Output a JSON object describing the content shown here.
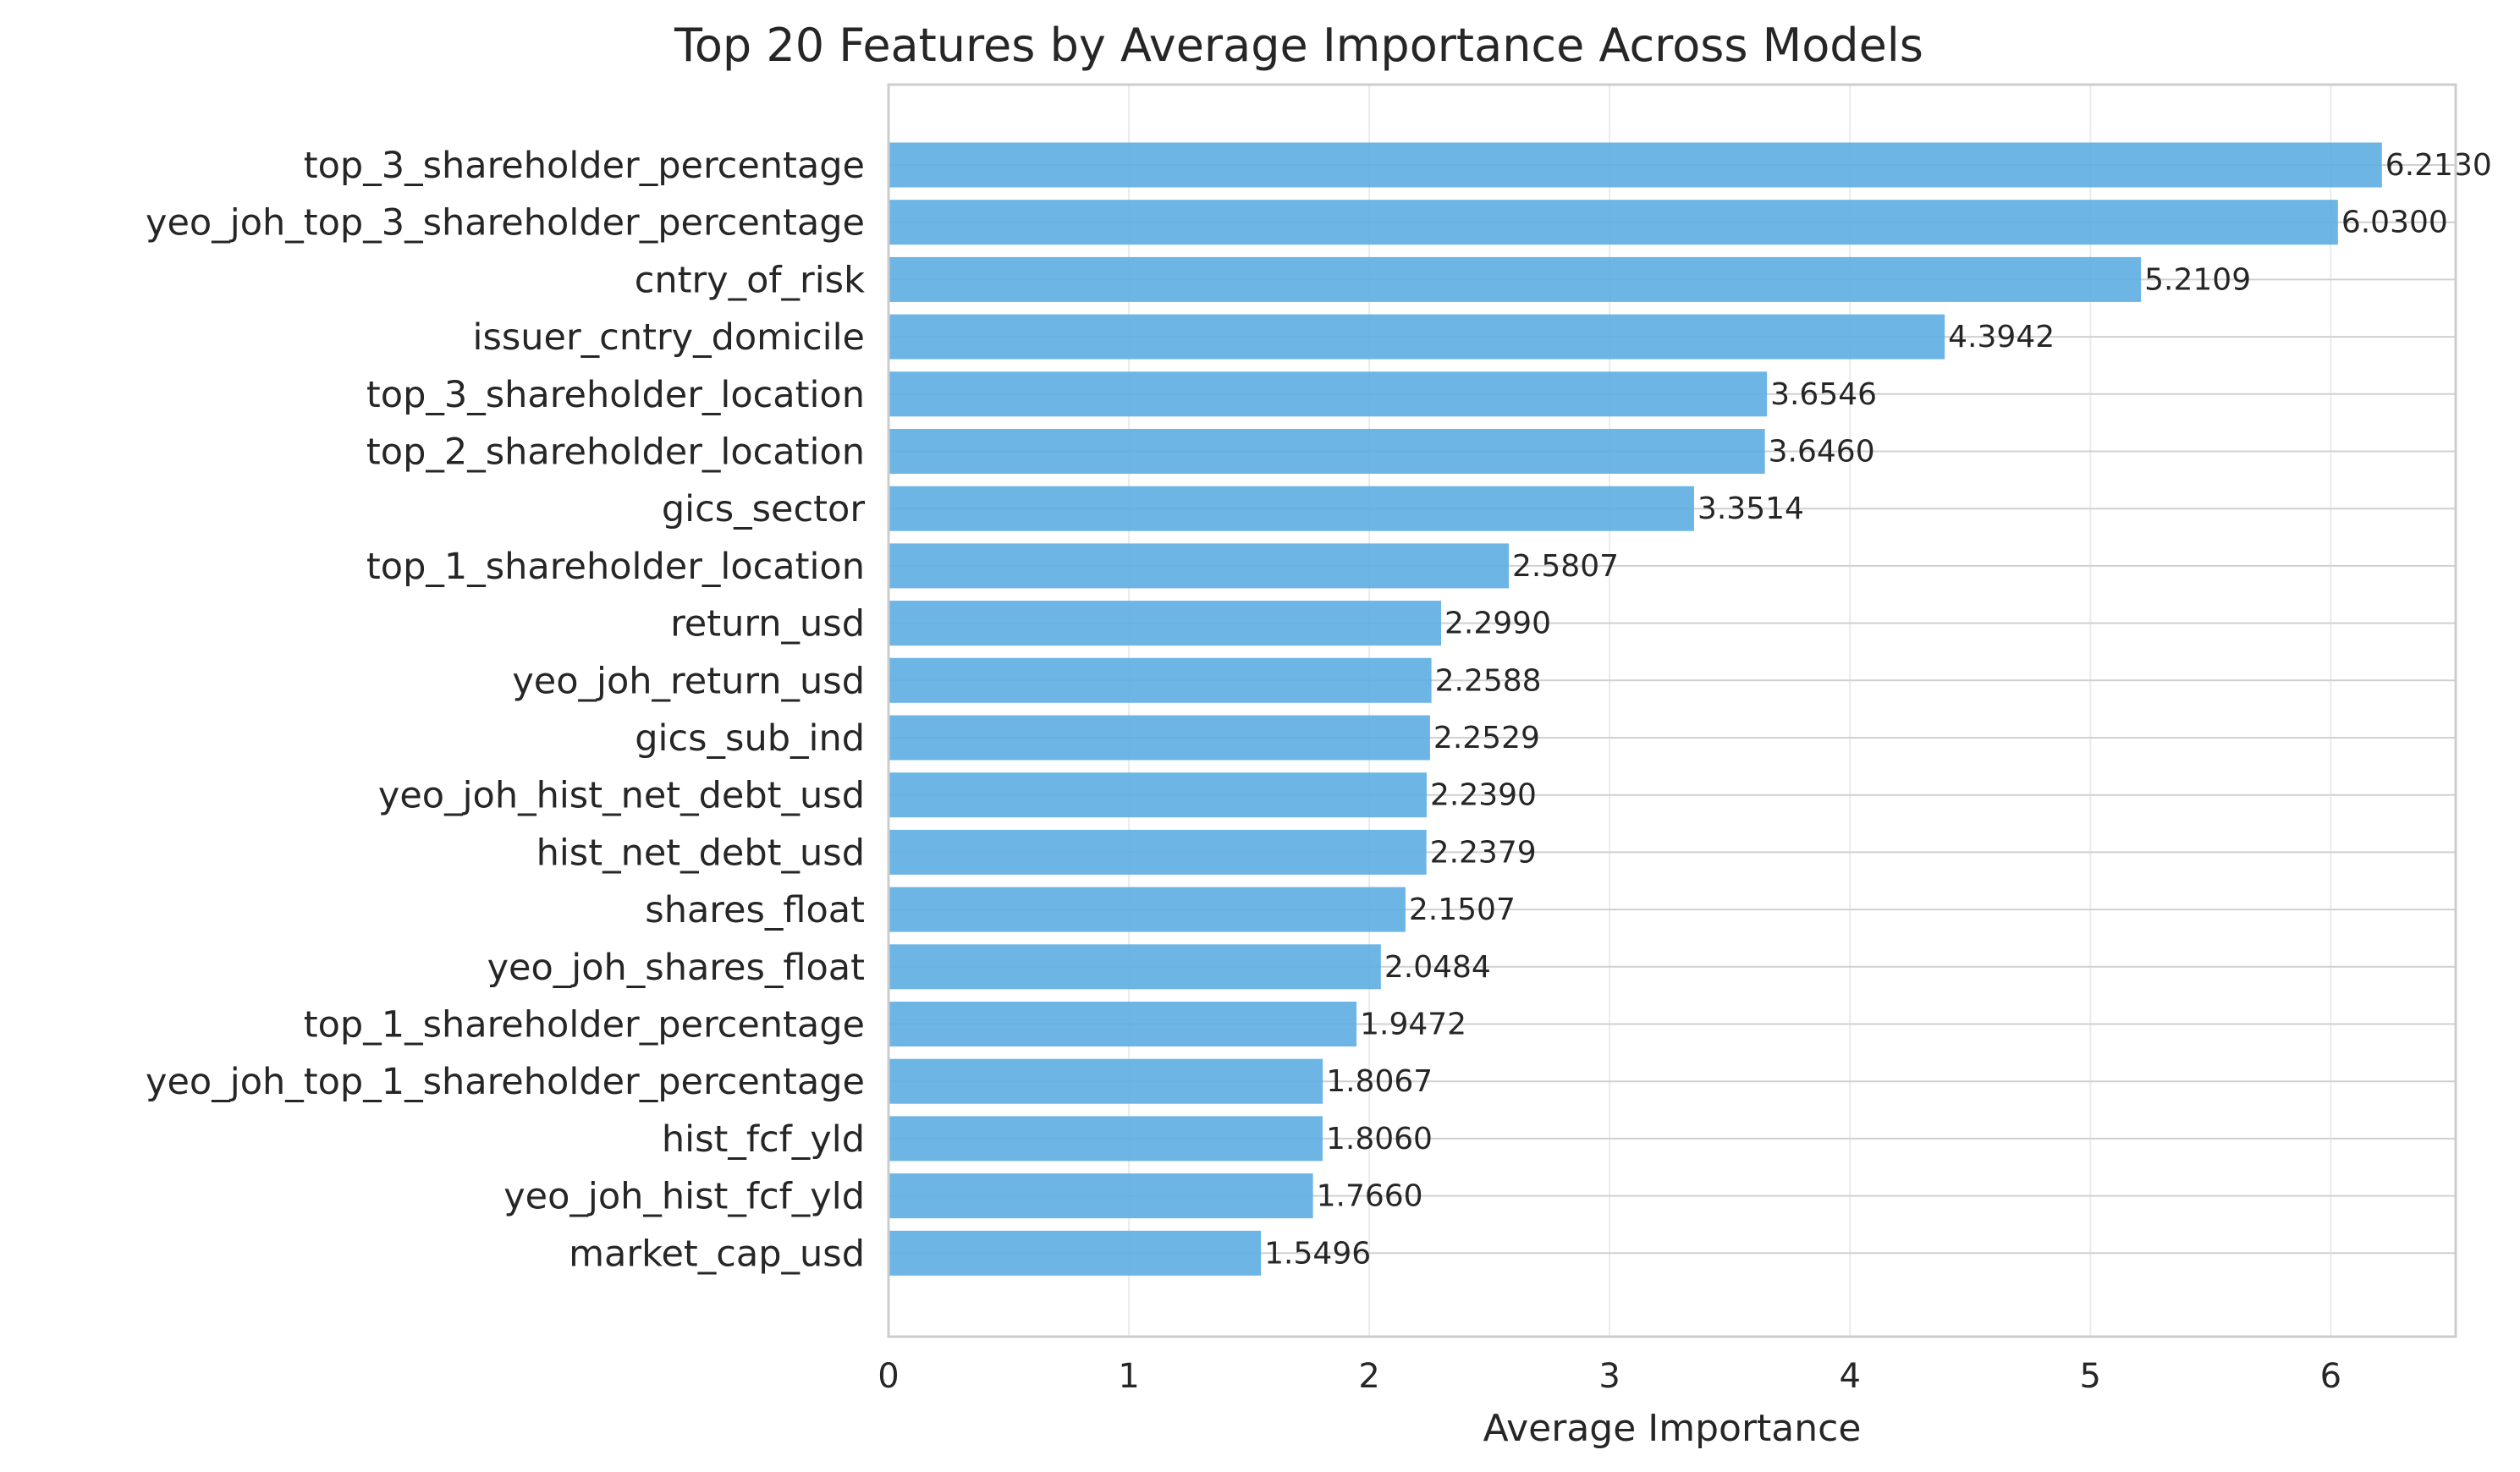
{
  "chart_data": {
    "type": "bar",
    "orientation": "horizontal",
    "title": "Top 20 Features by Average Importance Across Models",
    "xlabel": "Average Importance",
    "ylabel": "",
    "xlim": [
      0,
      6.52
    ],
    "xticks": [
      0,
      1,
      2,
      3,
      4,
      5,
      6
    ],
    "grid": true,
    "bar_color": "#5dade2",
    "categories": [
      "top_3_shareholder_percentage",
      "yeo_joh_top_3_shareholder_percentage",
      "cntry_of_risk",
      "issuer_cntry_domicile",
      "top_3_shareholder_location",
      "top_2_shareholder_location",
      "gics_sector",
      "top_1_shareholder_location",
      "return_usd",
      "yeo_joh_return_usd",
      "gics_sub_ind",
      "yeo_joh_hist_net_debt_usd",
      "hist_net_debt_usd",
      "shares_float",
      "yeo_joh_shares_float",
      "top_1_shareholder_percentage",
      "yeo_joh_top_1_shareholder_percentage",
      "hist_fcf_yld",
      "yeo_joh_hist_fcf_yld",
      "market_cap_usd"
    ],
    "values": [
      6.213,
      6.03,
      5.2109,
      4.3942,
      3.6546,
      3.646,
      3.3514,
      2.5807,
      2.299,
      2.2588,
      2.2529,
      2.239,
      2.2379,
      2.1507,
      2.0484,
      1.9472,
      1.8067,
      1.806,
      1.766,
      1.5496
    ],
    "value_labels": [
      "6.2130",
      "6.0300",
      "5.2109",
      "4.3942",
      "3.6546",
      "3.6460",
      "3.3514",
      "2.5807",
      "2.2990",
      "2.2588",
      "2.2529",
      "2.2390",
      "2.2379",
      "2.1507",
      "2.0484",
      "1.9472",
      "1.8067",
      "1.8060",
      "1.7660",
      "1.5496"
    ]
  }
}
